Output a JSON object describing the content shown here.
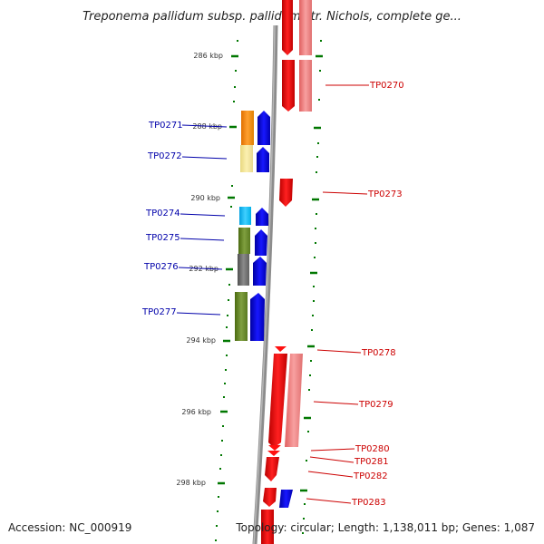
{
  "title": "Treponema pallidum subsp. pallidum str. Nichols, complete ge...",
  "footer": {
    "accession": "Accession: NC_000919",
    "stats": "Topology: circular; Length: 1,138,011 bp; Genes: 1,087"
  },
  "scale_labels": [
    "286 kbp",
    "288 kbp",
    "290 kbp",
    "292 kbp",
    "294 kbp",
    "296 kbp",
    "298 kbp"
  ],
  "genes_left": [
    "TP0271",
    "TP0272",
    "TP0274",
    "TP0275",
    "TP0276",
    "TP0277"
  ],
  "genes_right": [
    "TP0270",
    "TP0273",
    "TP0278",
    "TP0279",
    "TP0280",
    "TP0281",
    "TP0282",
    "TP0283"
  ],
  "colors": {
    "forward": "#ff0000",
    "forward_light": "#f08080",
    "reverse": "#0000ff",
    "backbone": "#808080",
    "tick": "#007700",
    "label_blue": "#0000aa",
    "label_red": "#cc0000"
  }
}
